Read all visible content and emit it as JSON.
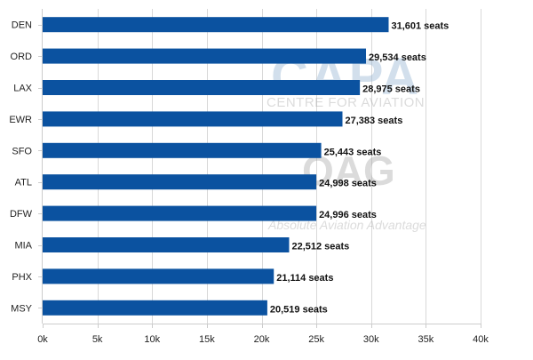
{
  "chart_data": {
    "type": "bar",
    "orientation": "horizontal",
    "categories": [
      "DEN",
      "ORD",
      "LAX",
      "EWR",
      "SFO",
      "ATL",
      "DFW",
      "MIA",
      "PHX",
      "MSY"
    ],
    "values": [
      31601,
      29534,
      28975,
      27383,
      25443,
      24998,
      24996,
      22512,
      21114,
      20519
    ],
    "data_labels": [
      "31,601 seats",
      "29,534 seats",
      "28,975 seats",
      "27,383 seats",
      "25,443 seats",
      "24,998 seats",
      "24,996 seats",
      "22,512 seats",
      "21,114 seats",
      "20,519 seats"
    ],
    "xticks": [
      0,
      5000,
      10000,
      15000,
      20000,
      25000,
      30000,
      35000,
      40000
    ],
    "xtick_labels": [
      "0k",
      "5k",
      "10k",
      "15k",
      "20k",
      "25k",
      "30k",
      "35k",
      "40k"
    ],
    "xlim": [
      0,
      40000
    ],
    "grid": "vertical",
    "bar_color": "#0b52a0"
  },
  "watermarks": {
    "capa_logo": "CAPA",
    "capa_tagline": "CENTRE FOR AVIATION",
    "oag_logo": "OAG",
    "oag_tagline": "Absolute Aviation Advantage"
  }
}
